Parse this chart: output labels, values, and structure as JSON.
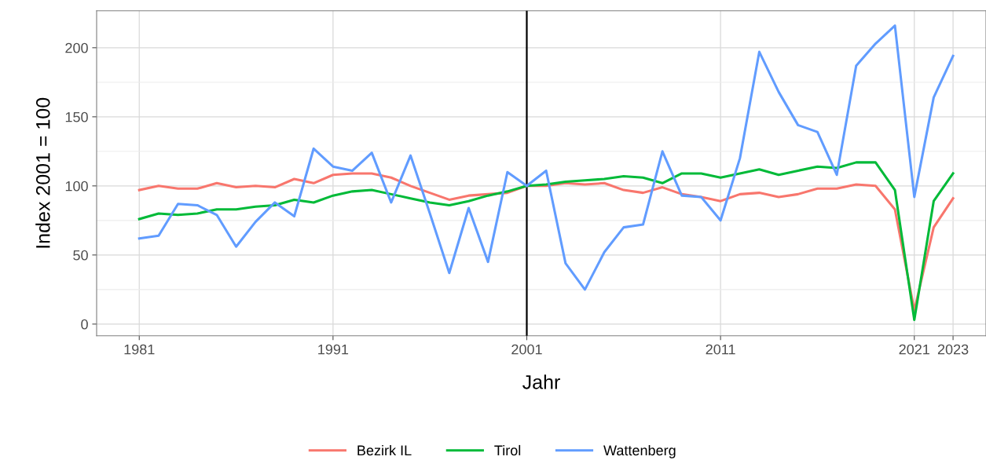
{
  "chart_data": {
    "type": "line",
    "xlabel": "Jahr",
    "ylabel": "Index 2001 = 100",
    "x": [
      1981,
      1982,
      1983,
      1984,
      1985,
      1986,
      1987,
      1988,
      1989,
      1990,
      1991,
      1992,
      1993,
      1994,
      1995,
      1996,
      1997,
      1998,
      1999,
      2000,
      2001,
      2002,
      2003,
      2004,
      2005,
      2006,
      2007,
      2008,
      2009,
      2010,
      2011,
      2012,
      2013,
      2014,
      2015,
      2016,
      2017,
      2018,
      2019,
      2020,
      2021,
      2022,
      2023
    ],
    "series": [
      {
        "name": "Bezirk IL",
        "color": "#f8766d",
        "values": [
          97,
          100,
          98,
          98,
          102,
          99,
          100,
          99,
          105,
          102,
          108,
          109,
          109,
          106,
          100,
          95,
          90,
          93,
          94,
          95,
          100,
          100,
          102,
          101,
          102,
          97,
          95,
          99,
          94,
          92,
          89,
          94,
          95,
          92,
          94,
          98,
          98,
          101,
          100,
          83,
          10,
          70,
          91
        ]
      },
      {
        "name": "Tirol",
        "color": "#00ba38",
        "values": [
          76,
          80,
          79,
          80,
          83,
          83,
          85,
          86,
          90,
          88,
          93,
          96,
          97,
          94,
          91,
          88,
          86,
          89,
          93,
          96,
          100,
          101,
          103,
          104,
          105,
          107,
          106,
          102,
          109,
          109,
          106,
          109,
          112,
          108,
          111,
          114,
          113,
          117,
          117,
          97,
          3,
          89,
          109
        ]
      },
      {
        "name": "Wattenberg",
        "color": "#619cff",
        "values": [
          62,
          64,
          87,
          86,
          79,
          56,
          74,
          88,
          78,
          127,
          114,
          111,
          124,
          88,
          122,
          80,
          37,
          84,
          45,
          110,
          100,
          111,
          44,
          25,
          52,
          70,
          72,
          125,
          93,
          92,
          75,
          120,
          197,
          168,
          144,
          139,
          108,
          187,
          203,
          216,
          92,
          164,
          194
        ]
      }
    ],
    "xlim": [
      1978.8,
      2024.7
    ],
    "xticks": [
      1981,
      1991,
      2001,
      2011,
      2021,
      2023
    ],
    "ylim": [
      -8.5,
      226.7
    ],
    "yticks": [
      0,
      50,
      100,
      150,
      200
    ],
    "ref_lines": [
      {
        "axis": "x",
        "value": 2001,
        "color": "#000000"
      }
    ],
    "grid": true,
    "legend": "bottom",
    "line_style": "solid",
    "marker": "none"
  }
}
